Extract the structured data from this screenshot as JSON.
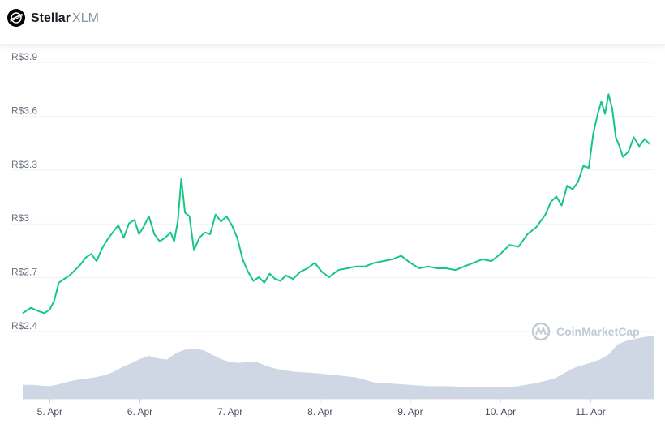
{
  "header": {
    "name": "Stellar",
    "symbol": "XLM"
  },
  "watermark": "CoinMarketCap",
  "colors": {
    "price_line": "#16c784",
    "volume_fill": "#cfd6e4",
    "grid": "#eff2f5",
    "text": "#1b1e25",
    "muted": "#8a93a3"
  },
  "chart_data": {
    "type": "line",
    "title": "",
    "xlabel": "",
    "ylabel": "",
    "currency_prefix": "R$",
    "ylim": [
      2.4,
      3.9
    ],
    "yticks": [
      {
        "value": 3.9,
        "label": "R$3.9"
      },
      {
        "value": 3.6,
        "label": "R$3.6"
      },
      {
        "value": 3.3,
        "label": "R$3.3"
      },
      {
        "value": 3.0,
        "label": "R$3"
      },
      {
        "value": 2.7,
        "label": "R$2.7"
      },
      {
        "value": 2.4,
        "label": "R$2.4"
      }
    ],
    "xlim": [
      4.7,
      11.7
    ],
    "xticks": [
      {
        "value": 5,
        "label": "5. Apr"
      },
      {
        "value": 6,
        "label": "6. Apr"
      },
      {
        "value": 7,
        "label": "7. Apr"
      },
      {
        "value": 8,
        "label": "8. Apr"
      },
      {
        "value": 9,
        "label": "9. Apr"
      },
      {
        "value": 10,
        "label": "10. Apr"
      },
      {
        "value": 11,
        "label": "11. Apr"
      }
    ],
    "grid": true,
    "series": [
      {
        "kind": "price",
        "x": [
          4.7,
          4.79,
          4.88,
          4.94,
          5.0,
          5.05,
          5.1,
          5.16,
          5.22,
          5.28,
          5.34,
          5.4,
          5.46,
          5.52,
          5.58,
          5.64,
          5.7,
          5.76,
          5.82,
          5.88,
          5.94,
          5.99,
          6.04,
          6.1,
          6.16,
          6.22,
          6.28,
          6.34,
          6.38,
          6.42,
          6.46,
          6.5,
          6.55,
          6.6,
          6.66,
          6.72,
          6.78,
          6.84,
          6.9,
          6.96,
          7.02,
          7.08,
          7.14,
          7.2,
          7.26,
          7.32,
          7.38,
          7.44,
          7.5,
          7.56,
          7.62,
          7.7,
          7.78,
          7.86,
          7.94,
          8.02,
          8.1,
          8.2,
          8.3,
          8.4,
          8.5,
          8.6,
          8.7,
          8.8,
          8.9,
          9.0,
          9.1,
          9.2,
          9.3,
          9.4,
          9.5,
          9.6,
          9.7,
          9.8,
          9.9,
          10.0,
          10.1,
          10.2,
          10.3,
          10.4,
          10.5,
          10.56,
          10.62,
          10.68,
          10.74,
          10.8,
          10.86,
          10.92,
          10.98,
          11.03,
          11.08,
          11.12,
          11.16,
          11.2,
          11.24,
          11.28,
          11.32,
          11.36,
          11.42,
          11.48,
          11.54,
          11.6,
          11.66
        ],
        "y": [
          2.48,
          2.51,
          2.49,
          2.48,
          2.5,
          2.55,
          2.65,
          2.67,
          2.69,
          2.72,
          2.75,
          2.79,
          2.81,
          2.77,
          2.84,
          2.89,
          2.93,
          2.97,
          2.9,
          2.98,
          3.0,
          2.92,
          2.96,
          3.02,
          2.92,
          2.88,
          2.9,
          2.93,
          2.88,
          2.99,
          3.23,
          3.04,
          3.02,
          2.83,
          2.9,
          2.93,
          2.92,
          3.03,
          2.99,
          3.02,
          2.97,
          2.9,
          2.78,
          2.71,
          2.66,
          2.68,
          2.65,
          2.7,
          2.67,
          2.66,
          2.69,
          2.67,
          2.71,
          2.73,
          2.76,
          2.71,
          2.68,
          2.72,
          2.73,
          2.74,
          2.74,
          2.76,
          2.77,
          2.78,
          2.8,
          2.76,
          2.73,
          2.74,
          2.73,
          2.73,
          2.72,
          2.74,
          2.76,
          2.78,
          2.77,
          2.81,
          2.86,
          2.85,
          2.92,
          2.96,
          3.03,
          3.1,
          3.13,
          3.08,
          3.19,
          3.17,
          3.21,
          3.3,
          3.29,
          3.48,
          3.59,
          3.66,
          3.59,
          3.7,
          3.62,
          3.46,
          3.41,
          3.35,
          3.38,
          3.46,
          3.41,
          3.45,
          3.42
        ]
      },
      {
        "kind": "volume",
        "x": [
          4.7,
          4.8,
          4.9,
          5.0,
          5.1,
          5.2,
          5.3,
          5.4,
          5.5,
          5.6,
          5.7,
          5.8,
          5.9,
          6.0,
          6.1,
          6.2,
          6.3,
          6.4,
          6.5,
          6.6,
          6.7,
          6.8,
          6.9,
          7.0,
          7.1,
          7.2,
          7.3,
          7.4,
          7.5,
          7.6,
          7.7,
          7.8,
          7.9,
          8.0,
          8.2,
          8.4,
          8.6,
          8.8,
          9.0,
          9.2,
          9.4,
          9.6,
          9.8,
          10.0,
          10.2,
          10.4,
          10.6,
          10.7,
          10.8,
          10.9,
          11.0,
          11.1,
          11.2,
          11.3,
          11.4,
          11.5,
          11.6,
          11.7
        ],
        "y": [
          0.22,
          0.22,
          0.21,
          0.2,
          0.23,
          0.27,
          0.3,
          0.32,
          0.34,
          0.37,
          0.42,
          0.5,
          0.56,
          0.63,
          0.68,
          0.64,
          0.62,
          0.72,
          0.78,
          0.79,
          0.77,
          0.7,
          0.63,
          0.58,
          0.57,
          0.58,
          0.58,
          0.52,
          0.48,
          0.45,
          0.43,
          0.42,
          0.41,
          0.4,
          0.37,
          0.34,
          0.26,
          0.24,
          0.22,
          0.2,
          0.2,
          0.19,
          0.18,
          0.18,
          0.2,
          0.25,
          0.32,
          0.4,
          0.48,
          0.53,
          0.57,
          0.62,
          0.7,
          0.86,
          0.92,
          0.95,
          0.98,
          1.0
        ]
      }
    ]
  }
}
